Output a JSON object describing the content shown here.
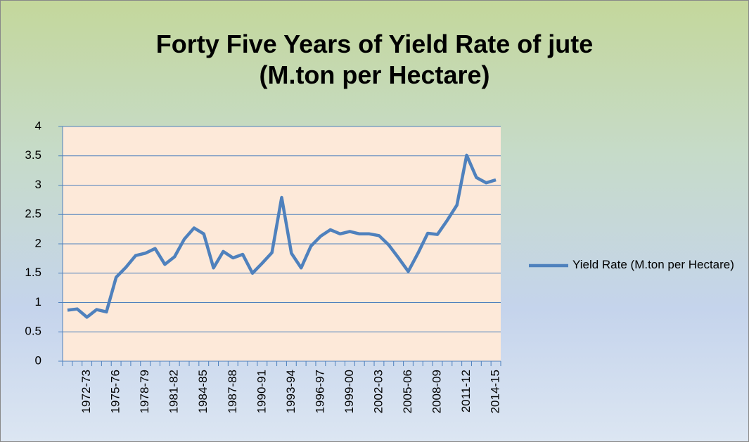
{
  "chart_data": {
    "type": "line",
    "title": [
      "Forty Five Years of Yield Rate of jute",
      "(M.ton per Hectare)"
    ],
    "categories": [
      null,
      null,
      "1972-73",
      null,
      null,
      "1975-76",
      null,
      null,
      "1978-79",
      null,
      null,
      "1981-82",
      null,
      null,
      "1984-85",
      null,
      null,
      "1987-88",
      null,
      null,
      "1990-91",
      null,
      null,
      "1993-94",
      null,
      null,
      "1996-97",
      null,
      null,
      "1999-00",
      null,
      null,
      "2002-03",
      null,
      null,
      "2005-06",
      null,
      null,
      "2008-09",
      null,
      null,
      "2011-12",
      null,
      null,
      "2014-15"
    ],
    "series": [
      {
        "name": "Yield Rate (M.ton per Hectare)",
        "color": "#4f81bd",
        "values": [
          0.87,
          0.89,
          0.75,
          0.88,
          0.84,
          1.43,
          1.6,
          1.8,
          1.84,
          1.92,
          1.65,
          1.78,
          2.08,
          2.27,
          2.17,
          1.59,
          1.87,
          1.76,
          1.82,
          1.5,
          1.67,
          1.85,
          2.79,
          1.84,
          1.59,
          1.96,
          2.13,
          2.24,
          2.17,
          2.21,
          2.17,
          2.17,
          2.14,
          1.98,
          1.76,
          1.53,
          1.84,
          2.18,
          2.16,
          2.4,
          2.66,
          3.51,
          3.13,
          3.04,
          3.09
        ]
      }
    ],
    "ylim": [
      0,
      4
    ],
    "yticks": [
      0,
      0.5,
      1,
      1.5,
      2,
      2.5,
      3,
      3.5,
      4
    ],
    "grid": true,
    "legend": "right"
  }
}
